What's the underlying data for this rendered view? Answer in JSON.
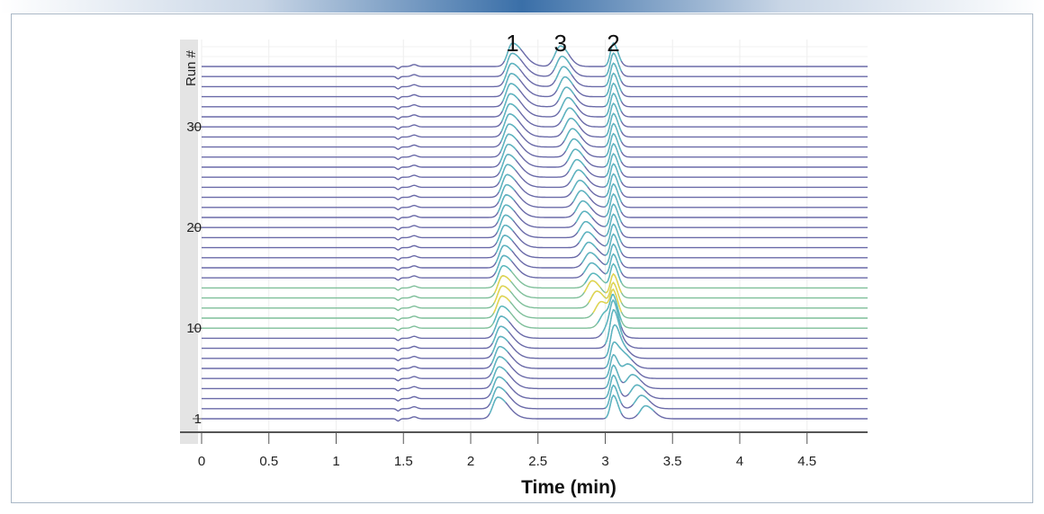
{
  "chart_data": {
    "type": "line",
    "title": "",
    "xlabel": "Time (min)",
    "ylabel": "Run #",
    "xlim": [
      0,
      4.95
    ],
    "x_ticks": [
      "0",
      "0.5",
      "1",
      "1.5",
      "2",
      "2.5",
      "3",
      "3.5",
      "4",
      "4.5"
    ],
    "y_ticks": [
      {
        "label": "1",
        "run": 1
      },
      {
        "label": "10",
        "run": 10
      },
      {
        "label": "20",
        "run": 20
      },
      {
        "label": "30",
        "run": 30
      }
    ],
    "runs": 36,
    "peak_labels": [
      "1",
      "3",
      "2"
    ],
    "grid": true,
    "colors": {
      "trace": "#6a6aa8",
      "peak_low": "#5bb8c0",
      "peak_high": "#e6d54a",
      "axis": "#555555",
      "band": "#e4e4e4"
    }
  }
}
